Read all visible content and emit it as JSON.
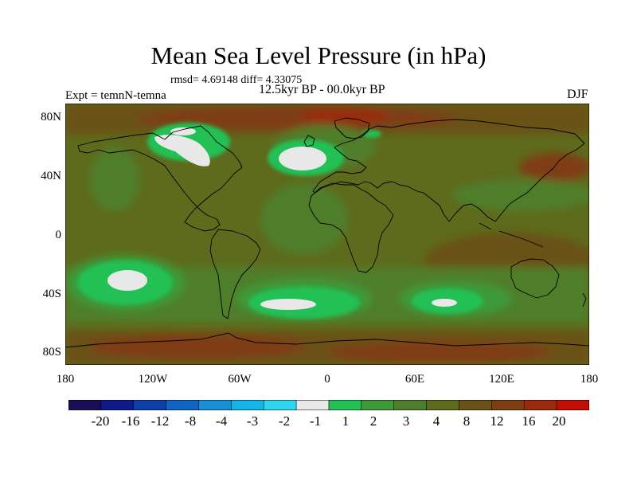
{
  "title": "Mean Sea Level Pressure (in hPa)",
  "stats": "rmsd= 4.69148 diff= 4.33075",
  "experiment": "Expt = temnN-temna",
  "period": "12.5kyr BP - 00.0kyr BP",
  "season": "DJF",
  "colors": {
    "c_m20": "#1a0d5a",
    "c_m16": "#0f1a8a",
    "c_m12": "#0c3fa8",
    "c_m8": "#0f64c4",
    "c_m4": "#1990d6",
    "c_m3": "#15b4e6",
    "c_m2": "#30d4f0",
    "c_m1": "#e8e8e8",
    "c_1": "#22c055",
    "c_2": "#3d9a37",
    "c_3": "#4f7e2b",
    "c_4": "#5e6a1c",
    "c_8": "#6b5117",
    "c_12": "#7f3e12",
    "c_16": "#9a2a0c",
    "c_20": "#c10f06"
  },
  "chart_data": {
    "type": "heatmap",
    "xlabel": "longitude",
    "ylabel": "latitude",
    "xlim": [
      -180,
      180
    ],
    "ylim": [
      -90,
      90
    ],
    "lat_ticks": [
      "80N",
      "40N",
      "0",
      "40S",
      "80S"
    ],
    "lat_values": [
      80,
      40,
      0,
      -40,
      -80
    ],
    "lon_ticks": [
      "180",
      "120W",
      "60W",
      "0",
      "60E",
      "120E",
      "180"
    ],
    "lon_values": [
      -180,
      -120,
      -60,
      0,
      60,
      120,
      180
    ],
    "colorbar_labels": [
      "-20",
      "-16",
      "-12",
      "-8",
      "-4",
      "-3",
      "-2",
      "-1",
      "1",
      "2",
      "3",
      "4",
      "8",
      "12",
      "16",
      "20"
    ],
    "colorbar_colors": [
      "#1a0d5a",
      "#0f1a8a",
      "#0c3fa8",
      "#0f64c4",
      "#1990d6",
      "#15b4e6",
      "#30d4f0",
      "#e8e8e8",
      "#22c055",
      "#3d9a37",
      "#4f7e2b",
      "#5e6a1c",
      "#6b5117",
      "#7f3e12",
      "#9a2a0c",
      "#c10f06"
    ]
  }
}
